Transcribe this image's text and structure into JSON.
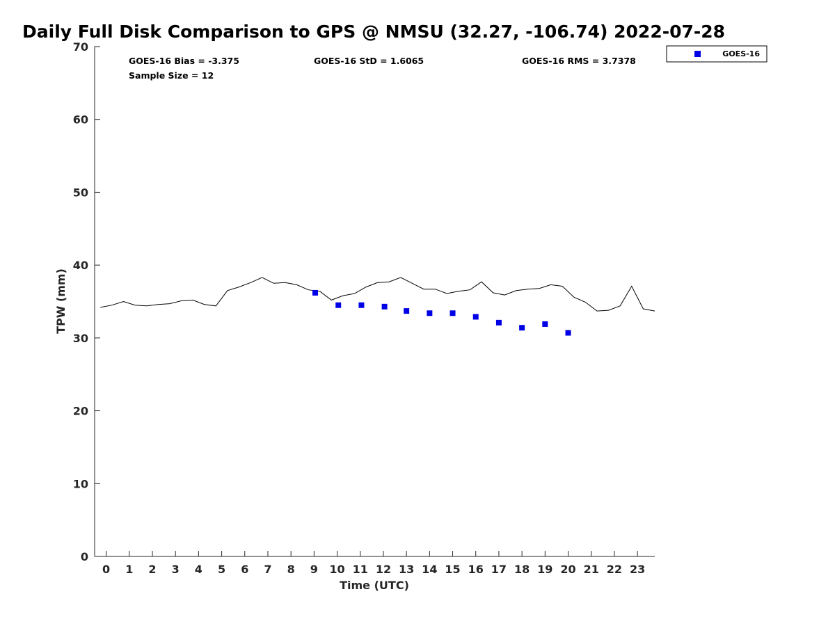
{
  "chart_data": {
    "type": "scatter",
    "title": "Daily Full Disk Comparison to GPS @ NMSU (32.27, -106.74) 2022-07-28",
    "xlabel": "Time (UTC)",
    "ylabel": "TPW (mm)",
    "xlim": [
      -0.5,
      23.75
    ],
    "ylim": [
      0,
      70
    ],
    "x_ticks": [
      "0",
      "1",
      "2",
      "3",
      "4",
      "5",
      "6",
      "7",
      "8",
      "9",
      "10",
      "11",
      "12",
      "13",
      "14",
      "15",
      "16",
      "17",
      "18",
      "19",
      "20",
      "21",
      "22",
      "23"
    ],
    "y_ticks": [
      "0",
      "10",
      "20",
      "30",
      "40",
      "50",
      "60",
      "70"
    ],
    "grid": false,
    "legend_position": "top-right-outside",
    "stats": {
      "bias": "GOES-16 Bias = -3.375",
      "std": "GOES-16 StD = 1.6065",
      "rms": "GOES-16 RMS = 3.7378",
      "sample_size": "Sample Size = 12"
    },
    "series": [
      {
        "name": "GOES-16",
        "marker": "square",
        "color": "#0000e6",
        "x": [
          9.05,
          10.05,
          11.05,
          12.05,
          13.0,
          14.0,
          15.0,
          16.0,
          17.0,
          18.0,
          19.0,
          20.0
        ],
        "y": [
          36.2,
          34.5,
          34.5,
          34.3,
          33.7,
          33.4,
          33.4,
          32.9,
          32.1,
          31.4,
          31.9,
          30.7
        ]
      },
      {
        "marker": "line",
        "color": "#000000",
        "x": [
          -0.25,
          0.25,
          0.75,
          1.25,
          1.75,
          2.25,
          2.75,
          3.25,
          3.75,
          4.25,
          4.75,
          5.25,
          5.75,
          6.25,
          6.75,
          7.25,
          7.75,
          8.25,
          8.75,
          9.25,
          9.75,
          10.25,
          10.75,
          11.25,
          11.75,
          12.25,
          12.75,
          13.25,
          13.75,
          14.25,
          14.75,
          15.25,
          15.75,
          16.25,
          16.75,
          17.25,
          17.75,
          18.25,
          18.75,
          19.25,
          19.75,
          20.25,
          20.75,
          21.25,
          21.75,
          22.25,
          22.75,
          23.25,
          23.75
        ],
        "y": [
          34.2,
          34.5,
          35.0,
          34.5,
          34.4,
          34.6,
          34.7,
          35.1,
          35.2,
          34.6,
          34.4,
          36.5,
          37.0,
          37.6,
          38.3,
          37.5,
          37.6,
          37.3,
          36.6,
          36.4,
          35.2,
          35.8,
          36.1,
          37.0,
          37.6,
          37.7,
          38.3,
          37.5,
          36.7,
          36.7,
          36.1,
          36.4,
          36.6,
          37.7,
          36.2,
          35.9,
          36.5,
          36.7,
          36.8,
          37.3,
          37.1,
          35.6,
          34.9,
          33.7,
          33.8,
          34.4,
          37.1,
          34.0,
          33.7
        ]
      }
    ]
  }
}
